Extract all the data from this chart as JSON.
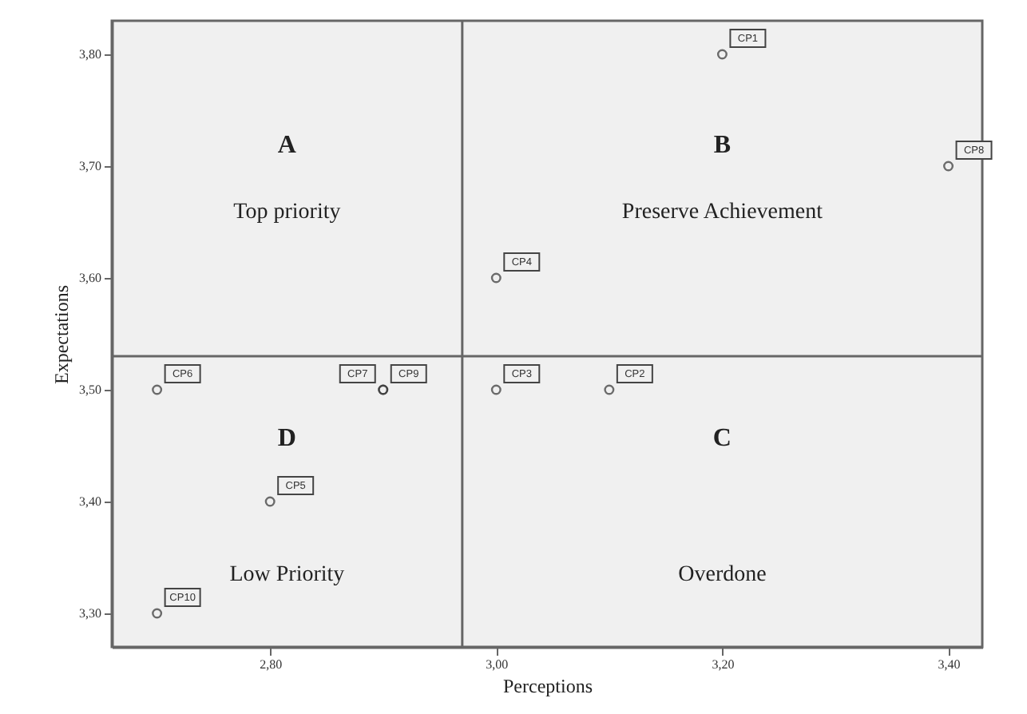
{
  "chart_data": {
    "type": "scatter",
    "xlabel": "Perceptions",
    "ylabel": "Expectations",
    "x": [
      3.2,
      3.1,
      3.0,
      3.0,
      2.8,
      2.7,
      2.9,
      3.4,
      2.9,
      2.7
    ],
    "values": [
      3.8,
      3.5,
      3.5,
      3.6,
      3.4,
      3.5,
      3.5,
      3.7,
      3.5,
      3.3
    ],
    "value_labels": [
      "CP1",
      "CP2",
      "CP3",
      "CP4",
      "CP5",
      "CP6",
      "CP7",
      "CP8",
      "CP9",
      "CP10"
    ],
    "color": "#333333",
    "marker": "circle",
    "xlim": [
      2.66,
      3.43
    ],
    "xticks": [
      {
        "value": 2.8,
        "label": "2,80"
      },
      {
        "value": 3.0,
        "label": "3,00"
      },
      {
        "value": 3.2,
        "label": "3,20"
      },
      {
        "value": 3.4,
        "label": "3,40"
      }
    ],
    "ylim": [
      3.27,
      3.83
    ],
    "yticks": [
      {
        "value": 3.3,
        "label": "3,30"
      },
      {
        "value": 3.4,
        "label": "3,40"
      },
      {
        "value": 3.5,
        "label": "3,50"
      },
      {
        "value": 3.6,
        "label": "3,60"
      },
      {
        "value": 3.7,
        "label": "3,70"
      },
      {
        "value": 3.8,
        "label": "3,80"
      }
    ],
    "ref_lines": [
      {
        "axis": "x",
        "value": 2.97,
        "color": "#666666"
      },
      {
        "axis": "y",
        "value": 3.53,
        "color": "#666666"
      }
    ],
    "annotations": [
      "A",
      "Top priority",
      "B",
      "Preserve Achievement",
      "C",
      "Overdone",
      "D",
      "Low Priority"
    ],
    "grid": false
  }
}
